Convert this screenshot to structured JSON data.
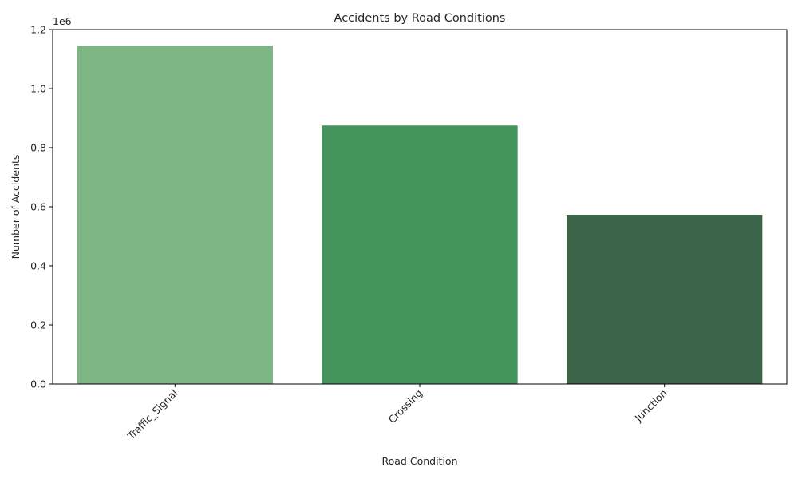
{
  "chart_data": {
    "type": "bar",
    "title": "Accidents by Road Conditions",
    "xlabel": "Road Condition",
    "ylabel": "Number of Accidents",
    "y_offset_label": "1e6",
    "categories": [
      "Traffic_Signal",
      "Crossing",
      "Junction"
    ],
    "values": [
      1145000,
      875000,
      573000
    ],
    "colors": [
      "#7db584",
      "#44945c",
      "#3b6449"
    ],
    "ylim": [
      0,
      1200000
    ],
    "yticks": [
      0,
      200000,
      400000,
      600000,
      800000,
      1000000,
      1200000
    ],
    "ytick_labels": [
      "0.0",
      "0.2",
      "0.4",
      "0.6",
      "0.8",
      "1.0",
      "1.2"
    ],
    "xtick_rotation": 45,
    "grid": false,
    "legend": "none"
  }
}
